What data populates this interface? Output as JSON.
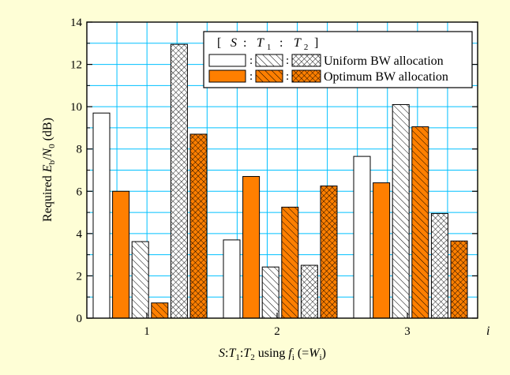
{
  "chart_data": {
    "type": "bar",
    "ylabel_parts": [
      "Required ",
      "E",
      "b",
      "/",
      "N",
      "0",
      " (dB)"
    ],
    "xlabel_parts": [
      "S",
      ":",
      "T",
      "1",
      ":",
      "T",
      "2",
      " using ",
      "f",
      "i",
      " (=",
      "W",
      "i",
      ")"
    ],
    "x_axis_end_label": "i",
    "categories": [
      "1",
      "2",
      "3"
    ],
    "ylim": [
      0,
      14
    ],
    "yticks": [
      "0",
      "2",
      "4",
      "6",
      "8",
      "10",
      "12",
      "14"
    ],
    "grid": true,
    "legend_position": "top-right",
    "legend": {
      "header": {
        "open": "[",
        "s": "S",
        "colon1": ":",
        "t1_letter": "T",
        "t1_sub": "1",
        "colon2": ":",
        "t2_letter": "T",
        "t2_sub": "2",
        "close": "]"
      },
      "sep": ":",
      "rows": [
        "Uniform BW allocation",
        "Optimum BW allocation"
      ]
    },
    "series": [
      {
        "key": "uniform-s",
        "group": "Uniform",
        "role": "S",
        "fill": "#ffffff",
        "pattern": "none",
        "values": [
          9.7,
          3.7,
          7.65
        ]
      },
      {
        "key": "optimum-s",
        "group": "Optimum",
        "role": "S",
        "fill": "#ff7f00",
        "pattern": "none",
        "values": [
          6.0,
          6.7,
          6.4
        ]
      },
      {
        "key": "uniform-t1",
        "group": "Uniform",
        "role": "T1",
        "fill": "#ffffff",
        "pattern": "hatch",
        "values": [
          3.62,
          2.42,
          10.1
        ]
      },
      {
        "key": "optimum-t1",
        "group": "Optimum",
        "role": "T1",
        "fill": "#ff7f00",
        "pattern": "hatch",
        "values": [
          0.72,
          5.25,
          9.05
        ]
      },
      {
        "key": "uniform-t2",
        "group": "Uniform",
        "role": "T2",
        "fill": "#ffffff",
        "pattern": "cross",
        "values": [
          12.95,
          2.5,
          4.95
        ]
      },
      {
        "key": "optimum-t2",
        "group": "Optimum",
        "role": "T2",
        "fill": "#ff7f00",
        "pattern": "cross",
        "values": [
          8.7,
          6.25,
          3.65
        ]
      }
    ],
    "colors": {
      "background": "#fefed6",
      "grid": "#00c0ff",
      "orange": "#ff7f00",
      "frame": "#000000"
    }
  }
}
